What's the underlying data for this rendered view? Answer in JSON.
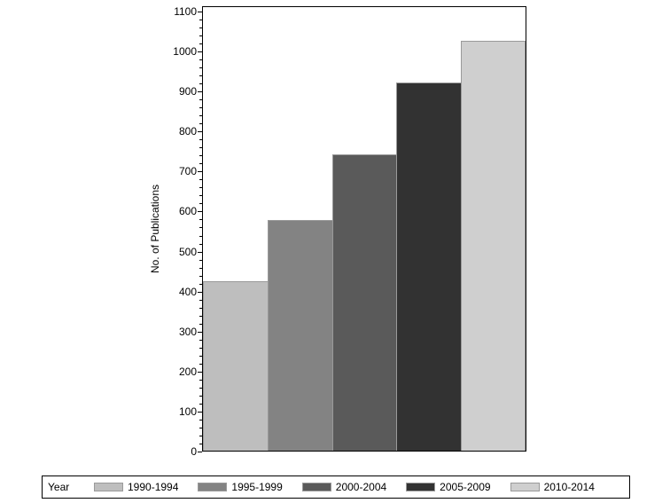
{
  "chart_data": {
    "type": "bar",
    "title": "",
    "xlabel": "",
    "ylabel": "No. of Publications",
    "categories": [
      "1990-1994",
      "1995-1999",
      "2000-2004",
      "2005-2009",
      "2010-2014"
    ],
    "values": [
      424,
      577,
      741,
      920,
      1025
    ],
    "colors": [
      "#bebebe",
      "#838383",
      "#5a5a5a",
      "#323232",
      "#cfcfcf"
    ],
    "ylim": [
      0,
      1100
    ],
    "yticks": [
      0,
      100,
      200,
      300,
      400,
      500,
      600,
      700,
      800,
      900,
      1000,
      1100
    ],
    "grid": false,
    "legend": {
      "title": "Year",
      "position": "bottom",
      "entries": [
        "1990-1994",
        "1995-1999",
        "2000-2004",
        "2005-2009",
        "2010-2014"
      ]
    }
  }
}
